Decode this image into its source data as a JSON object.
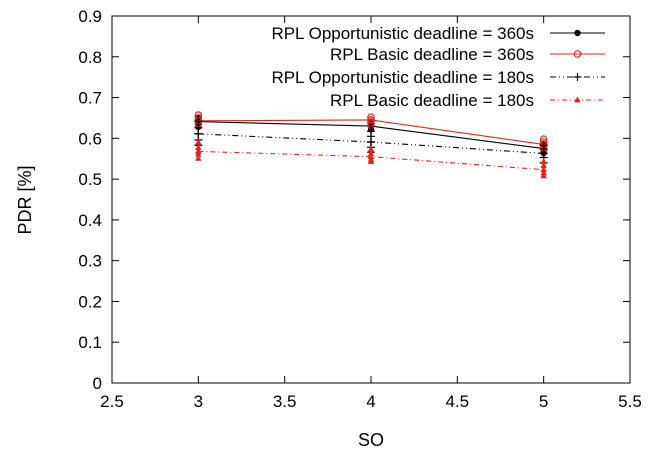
{
  "chart_data": {
    "type": "line",
    "xlabel": "SO",
    "ylabel": "PDR [%]",
    "xlim": [
      2.5,
      5.5
    ],
    "ylim": [
      0,
      0.9
    ],
    "xticks": [
      "2.5",
      "3",
      "3.5",
      "4",
      "4.5",
      "5",
      "5.5"
    ],
    "yticks": [
      "0",
      "0.1",
      "0.2",
      "0.3",
      "0.4",
      "0.5",
      "0.6",
      "0.7",
      "0.8",
      "0.9"
    ],
    "grid": false,
    "legend_position": "top-right",
    "x": [
      3,
      4,
      5
    ],
    "series": [
      {
        "name": "RPL Opportunistic deadline = 360s",
        "color": "#000000",
        "line_style": "solid",
        "marker": "filled-circle",
        "values": [
          0.641,
          0.63,
          0.575
        ],
        "samples": [
          [
            0.651,
            0.645,
            0.637,
            0.628
          ],
          [
            0.641,
            0.636,
            0.628,
            0.622
          ],
          [
            0.587,
            0.578,
            0.571,
            0.564
          ]
        ]
      },
      {
        "name": "RPL Basic deadline = 360s",
        "color": "#e8221b",
        "line_style": "solid",
        "marker": "open-circle",
        "values": [
          0.643,
          0.645,
          0.585
        ],
        "samples": [
          [
            0.657,
            0.65,
            0.643,
            0.636
          ],
          [
            0.652,
            0.645,
            0.638,
            0.632
          ],
          [
            0.598,
            0.591,
            0.583,
            0.577
          ]
        ]
      },
      {
        "name": "RPL Opportunistic deadline = 180s",
        "color": "#000000",
        "line_style": "dash-dot-dot",
        "marker": "plus",
        "values": [
          0.611,
          0.591,
          0.563
        ],
        "samples": [
          [
            0.642,
            0.626,
            0.611,
            0.596,
            0.583
          ],
          [
            0.617,
            0.605,
            0.591,
            0.578,
            0.566
          ],
          [
            0.583,
            0.573,
            0.563,
            0.553,
            0.54
          ]
        ]
      },
      {
        "name": "RPL Basic deadline = 180s",
        "color": "#e8221b",
        "line_style": "dash-dot",
        "marker": "filled-triangle",
        "values": [
          0.568,
          0.555,
          0.523
        ],
        "samples": [
          [
            0.59,
            0.577,
            0.568,
            0.561,
            0.551
          ],
          [
            0.573,
            0.563,
            0.555,
            0.548,
            0.543
          ],
          [
            0.543,
            0.533,
            0.523,
            0.515,
            0.508
          ]
        ]
      }
    ]
  }
}
